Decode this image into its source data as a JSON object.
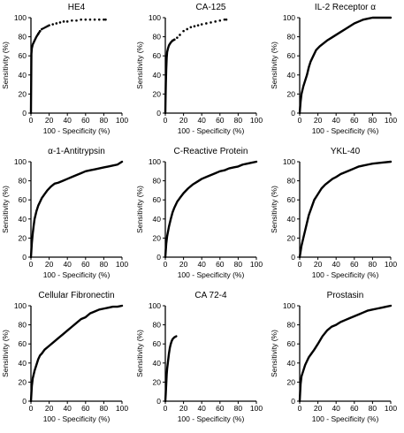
{
  "chart_data": [
    {
      "type": "line",
      "title": "HE4",
      "xlabel": "100 - Specificity (%)",
      "ylabel": "Sensitivity (%)",
      "xlim": [
        0,
        100
      ],
      "ylim": [
        0,
        100
      ],
      "xticks": [
        "0",
        "20",
        "40",
        "60",
        "80",
        "100"
      ],
      "yticks": [
        "0",
        "20",
        "40",
        "60",
        "80",
        "100"
      ],
      "style": "dotted",
      "x": [
        0,
        0.5,
        1,
        2,
        3,
        4,
        5,
        6,
        8,
        10,
        12,
        14,
        16,
        18,
        20,
        24,
        28,
        32,
        36,
        40,
        45,
        50,
        55,
        60,
        65,
        70,
        75,
        80,
        82
      ],
      "y": [
        0,
        62,
        68,
        72,
        74,
        76,
        78,
        80,
        83,
        86,
        88,
        89,
        90,
        91,
        92,
        93,
        94,
        95,
        96,
        96,
        97,
        97,
        98,
        98,
        98,
        98,
        98,
        98,
        98
      ]
    },
    {
      "type": "line",
      "title": "CA-125",
      "xlabel": "100 - Specificity (%)",
      "ylabel": "Sensitivity (%)",
      "xlim": [
        0,
        100
      ],
      "ylim": [
        0,
        100
      ],
      "xticks": [
        "0",
        "20",
        "40",
        "60",
        "80",
        "100"
      ],
      "yticks": [
        "0",
        "20",
        "40",
        "60",
        "80",
        "100"
      ],
      "style": "dotted",
      "x": [
        0,
        0.3,
        0.6,
        1,
        1.5,
        2,
        3,
        4,
        6,
        8,
        10,
        13,
        16,
        20,
        24,
        28,
        32,
        36,
        40,
        45,
        50,
        55,
        60,
        65,
        67
      ],
      "y": [
        0,
        18,
        32,
        46,
        58,
        64,
        68,
        71,
        74,
        76,
        77,
        79,
        82,
        86,
        88,
        90,
        91,
        92,
        93,
        94,
        95,
        96,
        97,
        98,
        98
      ]
    },
    {
      "type": "line",
      "title": "IL-2 Receptor α",
      "xlabel": "100 - Specificity (%)",
      "ylabel": "Sensitivity (%)",
      "xlim": [
        0,
        100
      ],
      "ylim": [
        0,
        100
      ],
      "xticks": [
        "0",
        "20",
        "40",
        "60",
        "80",
        "100"
      ],
      "yticks": [
        "0",
        "20",
        "40",
        "60",
        "80",
        "100"
      ],
      "style": "solid",
      "x": [
        0,
        1,
        2,
        4,
        6,
        8,
        10,
        12,
        15,
        18,
        22,
        26,
        30,
        35,
        40,
        45,
        50,
        55,
        60,
        65,
        70,
        75,
        80,
        90,
        100
      ],
      "y": [
        0,
        12,
        20,
        28,
        34,
        40,
        48,
        54,
        60,
        66,
        70,
        73,
        76,
        79,
        82,
        85,
        88,
        91,
        94,
        96,
        98,
        99,
        100,
        100,
        100
      ]
    },
    {
      "type": "line",
      "title": "α-1-Antitrypsin",
      "xlabel": "100 - Specificity (%)",
      "ylabel": "Sensitivity (%)",
      "xlim": [
        0,
        100
      ],
      "ylim": [
        0,
        100
      ],
      "xticks": [
        "0",
        "20",
        "40",
        "60",
        "80",
        "100"
      ],
      "yticks": [
        "0",
        "20",
        "40",
        "60",
        "80",
        "100"
      ],
      "style": "solid",
      "x": [
        0,
        1,
        2,
        3,
        4,
        6,
        8,
        10,
        12,
        15,
        18,
        22,
        26,
        30,
        35,
        40,
        45,
        50,
        55,
        60,
        65,
        70,
        75,
        80,
        85,
        90,
        95,
        100
      ],
      "y": [
        0,
        15,
        25,
        33,
        40,
        48,
        54,
        58,
        62,
        66,
        70,
        74,
        77,
        78,
        80,
        82,
        84,
        86,
        88,
        90,
        91,
        92,
        93,
        94,
        95,
        96,
        97,
        100
      ]
    },
    {
      "type": "line",
      "title": "C-Reactive Protein",
      "xlabel": "100 - Specificity (%)",
      "ylabel": "Sensitivity (%)",
      "xlim": [
        0,
        100
      ],
      "ylim": [
        0,
        100
      ],
      "xticks": [
        "0",
        "20",
        "40",
        "60",
        "80",
        "100"
      ],
      "yticks": [
        "0",
        "20",
        "40",
        "60",
        "80",
        "100"
      ],
      "style": "solid",
      "x": [
        0,
        1,
        2,
        4,
        6,
        8,
        10,
        13,
        16,
        20,
        25,
        30,
        35,
        40,
        45,
        50,
        55,
        60,
        65,
        70,
        75,
        80,
        85,
        90,
        95,
        100
      ],
      "y": [
        0,
        14,
        22,
        32,
        40,
        47,
        52,
        58,
        62,
        67,
        72,
        76,
        79,
        82,
        84,
        86,
        88,
        90,
        91,
        93,
        94,
        95,
        97,
        98,
        99,
        100
      ]
    },
    {
      "type": "line",
      "title": "YKL-40",
      "xlabel": "100 - Specificity (%)",
      "ylabel": "Sensitivity (%)",
      "xlim": [
        0,
        100
      ],
      "ylim": [
        0,
        100
      ],
      "xticks": [
        "0",
        "20",
        "40",
        "60",
        "80",
        "100"
      ],
      "yticks": [
        "0",
        "20",
        "40",
        "60",
        "80",
        "100"
      ],
      "style": "solid",
      "x": [
        0,
        1,
        2,
        4,
        6,
        8,
        10,
        13,
        16,
        20,
        24,
        28,
        32,
        36,
        40,
        45,
        50,
        55,
        60,
        65,
        70,
        75,
        80,
        90,
        100
      ],
      "y": [
        0,
        6,
        12,
        20,
        28,
        36,
        44,
        52,
        60,
        66,
        72,
        76,
        79,
        82,
        84,
        87,
        89,
        91,
        93,
        95,
        96,
        97,
        98,
        99,
        100
      ]
    },
    {
      "type": "line",
      "title": "Cellular Fibronectin",
      "xlabel": "100 - Specificity (%)",
      "ylabel": "Sensitivity (%)",
      "xlim": [
        0,
        100
      ],
      "ylim": [
        0,
        100
      ],
      "xticks": [
        "0",
        "20",
        "40",
        "60",
        "80",
        "100"
      ],
      "yticks": [
        "0",
        "20",
        "40",
        "60",
        "80",
        "100"
      ],
      "style": "solid",
      "x": [
        0,
        1,
        2,
        4,
        6,
        8,
        10,
        12,
        15,
        20,
        25,
        30,
        35,
        40,
        45,
        50,
        55,
        60,
        65,
        70,
        75,
        80,
        85,
        90,
        95,
        100
      ],
      "y": [
        0,
        16,
        24,
        32,
        38,
        44,
        48,
        50,
        54,
        58,
        62,
        66,
        70,
        74,
        78,
        82,
        86,
        88,
        92,
        94,
        96,
        97,
        98,
        99,
        99,
        100
      ]
    },
    {
      "type": "line",
      "title": "CA 72-4",
      "xlabel": "100 - Specificity (%)",
      "ylabel": "Sensitivity (%)",
      "xlim": [
        0,
        100
      ],
      "ylim": [
        0,
        100
      ],
      "xticks": [
        "0",
        "20",
        "40",
        "60",
        "80",
        "100"
      ],
      "yticks": [
        "0",
        "20",
        "40",
        "60",
        "80",
        "100"
      ],
      "style": "solid",
      "x": [
        0,
        0.5,
        1,
        1.5,
        2,
        3,
        4,
        5,
        6,
        7,
        8,
        9,
        10,
        12
      ],
      "y": [
        0,
        8,
        18,
        28,
        34,
        42,
        50,
        56,
        60,
        63,
        65,
        66,
        67,
        68
      ]
    },
    {
      "type": "line",
      "title": "Prostasin",
      "xlabel": "100 - Specificity (%)",
      "ylabel": "Sensitivity (%)",
      "xlim": [
        0,
        100
      ],
      "ylim": [
        0,
        100
      ],
      "xticks": [
        "0",
        "20",
        "40",
        "60",
        "80",
        "100"
      ],
      "yticks": [
        "0",
        "20",
        "40",
        "60",
        "80",
        "100"
      ],
      "style": "solid",
      "x": [
        0,
        1,
        2,
        4,
        6,
        8,
        10,
        13,
        16,
        20,
        25,
        30,
        35,
        40,
        45,
        50,
        55,
        60,
        65,
        70,
        75,
        80,
        85,
        90,
        95,
        100
      ],
      "y": [
        0,
        18,
        26,
        32,
        38,
        42,
        46,
        50,
        54,
        60,
        68,
        74,
        78,
        80,
        83,
        85,
        87,
        89,
        91,
        93,
        95,
        96,
        97,
        98,
        99,
        100
      ]
    }
  ]
}
